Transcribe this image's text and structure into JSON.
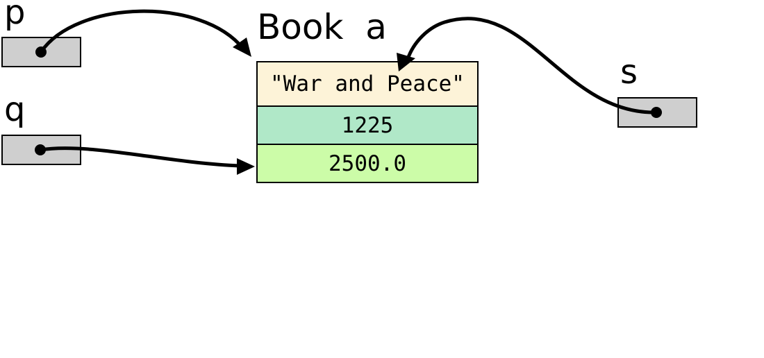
{
  "variables": {
    "p": "p",
    "q": "q",
    "s": "s"
  },
  "object": {
    "type_name": "Book",
    "var_name": "a",
    "fields": [
      {
        "value": "\"War and Peace\"",
        "color": "#fdf3d8"
      },
      {
        "value": "1225",
        "color": "#b0e8c8"
      },
      {
        "value": "2500.0",
        "color": "#ccfca8"
      }
    ]
  },
  "colors": {
    "reference_box": "#cfcfcf",
    "arrow": "#000000"
  }
}
